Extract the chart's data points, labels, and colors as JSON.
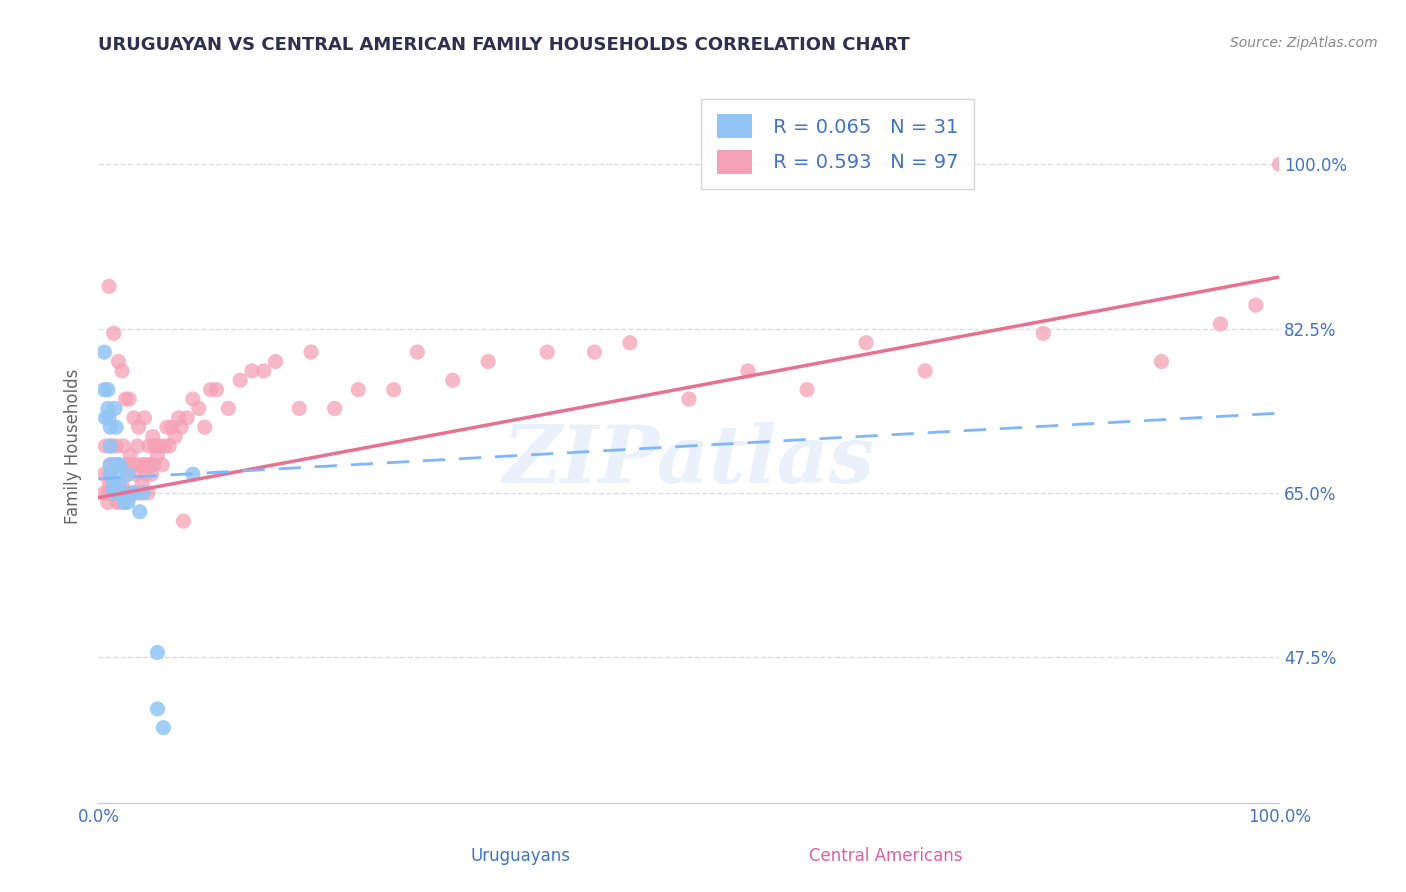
{
  "title": "URUGUAYAN VS CENTRAL AMERICAN FAMILY HOUSEHOLDS CORRELATION CHART",
  "source": "Source: ZipAtlas.com",
  "ylabel": "Family Households",
  "yticks": [
    0.475,
    0.65,
    0.825,
    1.0
  ],
  "ytick_labels": [
    "47.5%",
    "65.0%",
    "82.5%",
    "100.0%"
  ],
  "xlim": [
    0.0,
    1.0
  ],
  "ylim": [
    0.32,
    1.08
  ],
  "legend_r1": "R = 0.065",
  "legend_n1": "N = 31",
  "legend_r2": "R = 0.593",
  "legend_n2": "N = 97",
  "color_blue": "#92C5F5",
  "color_pink": "#F5A0B5",
  "color_blue_line": "#7EB6FF",
  "color_pink_line": "#E87090",
  "color_blue_text": "#4472C4",
  "color_pink_text": "#E060A0",
  "watermark_text": "ZIPatlas",
  "uruguayan_x": [
    0.005,
    0.005,
    0.006,
    0.008,
    0.008,
    0.009,
    0.01,
    0.01,
    0.01,
    0.01,
    0.012,
    0.012,
    0.014,
    0.015,
    0.016,
    0.016,
    0.016,
    0.018,
    0.018,
    0.02,
    0.022,
    0.025,
    0.025,
    0.03,
    0.03,
    0.035,
    0.038,
    0.05,
    0.05,
    0.055,
    0.08
  ],
  "uruguayan_y": [
    0.8,
    0.76,
    0.73,
    0.76,
    0.74,
    0.73,
    0.72,
    0.7,
    0.68,
    0.67,
    0.66,
    0.65,
    0.74,
    0.72,
    0.68,
    0.67,
    0.65,
    0.68,
    0.66,
    0.65,
    0.64,
    0.67,
    0.64,
    0.65,
    0.65,
    0.63,
    0.65,
    0.48,
    0.42,
    0.4,
    0.67
  ],
  "central_x": [
    0.005,
    0.005,
    0.006,
    0.008,
    0.008,
    0.009,
    0.009,
    0.01,
    0.01,
    0.011,
    0.012,
    0.012,
    0.013,
    0.014,
    0.015,
    0.015,
    0.016,
    0.016,
    0.017,
    0.017,
    0.018,
    0.019,
    0.02,
    0.02,
    0.021,
    0.022,
    0.022,
    0.023,
    0.024,
    0.025,
    0.025,
    0.026,
    0.027,
    0.028,
    0.03,
    0.03,
    0.031,
    0.032,
    0.033,
    0.034,
    0.035,
    0.036,
    0.037,
    0.038,
    0.039,
    0.04,
    0.041,
    0.042,
    0.043,
    0.044,
    0.045,
    0.046,
    0.047,
    0.048,
    0.05,
    0.052,
    0.054,
    0.056,
    0.058,
    0.06,
    0.062,
    0.065,
    0.068,
    0.07,
    0.072,
    0.075,
    0.08,
    0.085,
    0.09,
    0.095,
    0.1,
    0.11,
    0.12,
    0.13,
    0.14,
    0.15,
    0.17,
    0.18,
    0.2,
    0.22,
    0.25,
    0.27,
    0.3,
    0.33,
    0.38,
    0.42,
    0.45,
    0.5,
    0.55,
    0.6,
    0.65,
    0.7,
    0.8,
    0.9,
    0.95,
    0.98,
    1.0
  ],
  "central_y": [
    0.65,
    0.67,
    0.7,
    0.64,
    0.65,
    0.66,
    0.87,
    0.67,
    0.68,
    0.7,
    0.65,
    0.66,
    0.82,
    0.68,
    0.7,
    0.68,
    0.64,
    0.65,
    0.79,
    0.68,
    0.64,
    0.65,
    0.66,
    0.78,
    0.7,
    0.64,
    0.65,
    0.75,
    0.68,
    0.65,
    0.67,
    0.75,
    0.69,
    0.65,
    0.68,
    0.73,
    0.65,
    0.67,
    0.7,
    0.72,
    0.65,
    0.68,
    0.66,
    0.68,
    0.73,
    0.67,
    0.68,
    0.65,
    0.7,
    0.68,
    0.67,
    0.71,
    0.68,
    0.7,
    0.69,
    0.7,
    0.68,
    0.7,
    0.72,
    0.7,
    0.72,
    0.71,
    0.73,
    0.72,
    0.62,
    0.73,
    0.75,
    0.74,
    0.72,
    0.76,
    0.76,
    0.74,
    0.77,
    0.78,
    0.78,
    0.79,
    0.74,
    0.8,
    0.74,
    0.76,
    0.76,
    0.8,
    0.77,
    0.79,
    0.8,
    0.8,
    0.81,
    0.75,
    0.78,
    0.76,
    0.81,
    0.78,
    0.82,
    0.79,
    0.83,
    0.85,
    1.0
  ],
  "pink_trend_x0": 0.0,
  "pink_trend_y0": 0.645,
  "pink_trend_x1": 1.0,
  "pink_trend_y1": 0.88,
  "blue_trend_x0": 0.0,
  "blue_trend_y0": 0.665,
  "blue_trend_x1": 1.0,
  "blue_trend_y1": 0.735,
  "grid_color": "#DDDDDD",
  "bg_color": "#FFFFFF",
  "title_color": "#2F2F4F",
  "axis_label_color": "#4472C4"
}
